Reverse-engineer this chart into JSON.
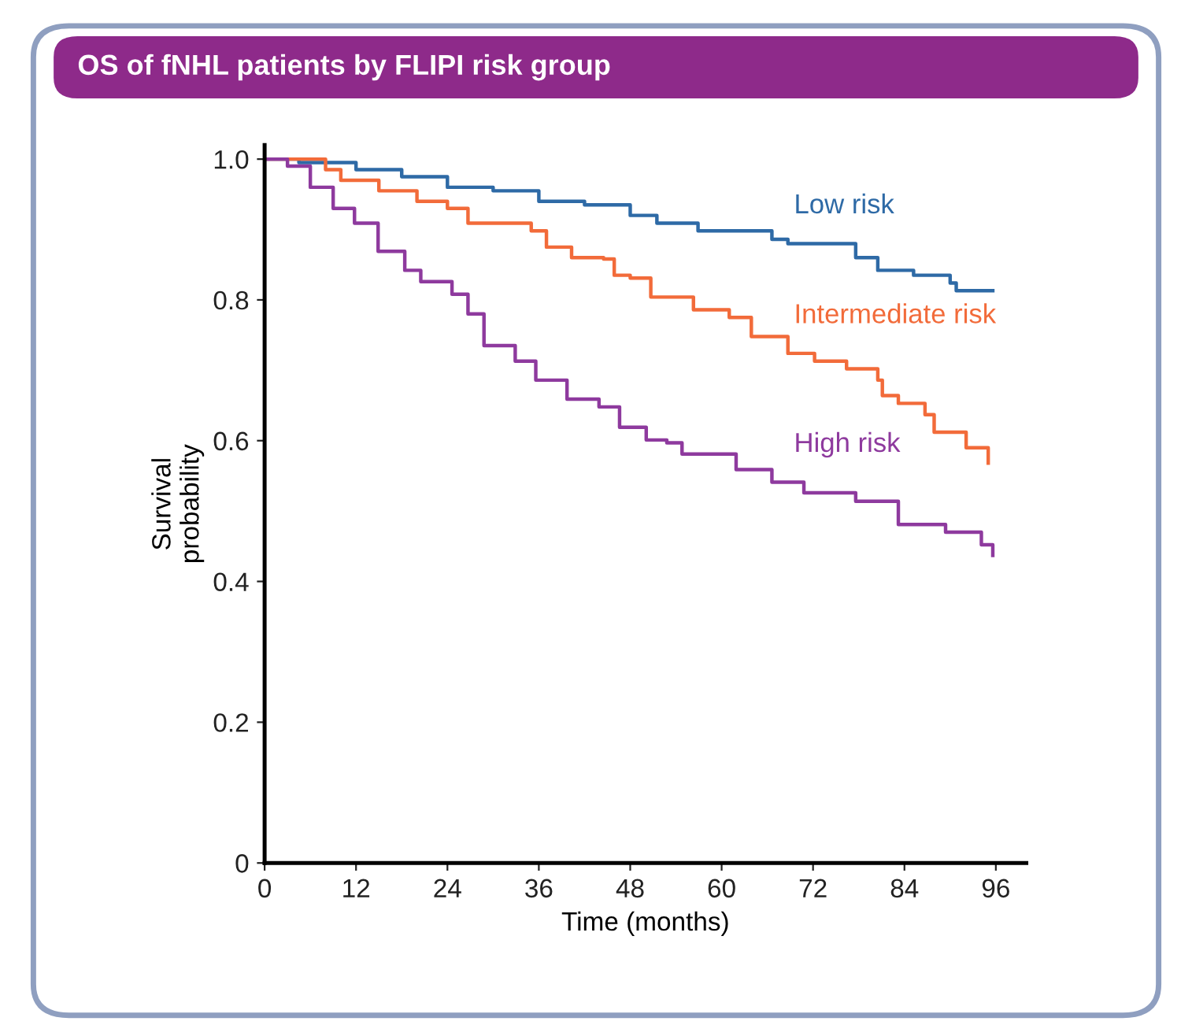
{
  "chart_data": {
    "type": "step",
    "title": "OS of fNHL patients by FLIPI risk group",
    "xlabel": "Time (months)",
    "ylabel": "Survival\nprobability",
    "xlim": [
      0,
      100
    ],
    "ylim": [
      0,
      1.02
    ],
    "xticks": [
      0,
      12,
      24,
      36,
      48,
      60,
      72,
      84,
      96
    ],
    "yticks": [
      0,
      {
        "value": 0.2,
        "label": "0.2"
      },
      {
        "value": 0.4,
        "label": "0.4"
      },
      {
        "value": 0.6,
        "label": "0.6"
      },
      {
        "value": 0.8,
        "label": "0.8"
      },
      {
        "value": 1,
        "label": "1.0"
      }
    ],
    "grid": false,
    "legend": false,
    "line_style": "solid",
    "marker": "none",
    "series": [
      {
        "name": "Low risk",
        "color": "#2e6aa6",
        "x": [
          0,
          4.5,
          12,
          18,
          24,
          30,
          36,
          42,
          48,
          51.5,
          56.9,
          66.6,
          68.7,
          77.6,
          80.5,
          85.2,
          90,
          90.8,
          95.6
        ],
        "values": [
          1.0,
          0.995,
          0.985,
          0.975,
          0.96,
          0.955,
          0.94,
          0.935,
          0.92,
          0.909,
          0.898,
          0.886,
          0.88,
          0.86,
          0.842,
          0.835,
          0.824,
          0.813,
          0.813
        ]
      },
      {
        "name": "Intermediate risk",
        "color": "#f26b3a",
        "x": [
          0,
          8,
          10,
          15,
          20,
          24,
          26.7,
          35,
          37,
          40.3,
          44.5,
          45.9,
          48,
          50.7,
          56.3,
          61,
          63.9,
          68.7,
          72.2,
          76.4,
          80.5,
          81.1,
          83.2,
          86.7,
          87.9,
          92.1,
          95
        ],
        "values": [
          1.0,
          0.985,
          0.97,
          0.955,
          0.94,
          0.93,
          0.909,
          0.898,
          0.875,
          0.86,
          0.858,
          0.835,
          0.831,
          0.804,
          0.786,
          0.775,
          0.748,
          0.724,
          0.713,
          0.702,
          0.686,
          0.664,
          0.653,
          0.637,
          0.612,
          0.59,
          0.568
        ]
      },
      {
        "name": "High risk",
        "color": "#8e3a9e",
        "x": [
          0,
          3,
          6,
          9,
          11.8,
          14.9,
          18.4,
          20.5,
          24.6,
          26.7,
          28.8,
          32.9,
          35.6,
          39.7,
          43.9,
          46.6,
          50.1,
          52.8,
          54.8,
          61.9,
          66.6,
          70.8,
          77.6,
          83.2,
          89.4,
          93.9,
          94.1,
          95.6
        ],
        "values": [
          1.0,
          0.99,
          0.96,
          0.93,
          0.909,
          0.869,
          0.842,
          0.826,
          0.808,
          0.78,
          0.735,
          0.713,
          0.686,
          0.659,
          0.648,
          0.619,
          0.601,
          0.597,
          0.581,
          0.559,
          0.541,
          0.526,
          0.514,
          0.481,
          0.47,
          0.47,
          0.452,
          0.437
        ]
      }
    ]
  }
}
